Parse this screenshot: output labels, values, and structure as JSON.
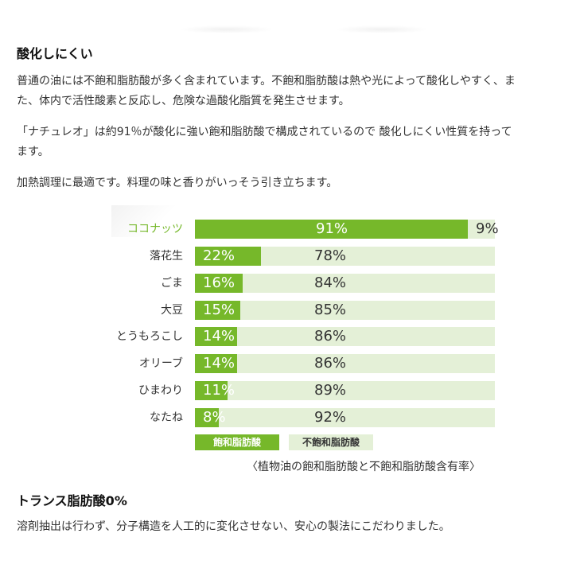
{
  "section1": {
    "heading": "酸化しにくい",
    "para1": [
      "普通の油には不飽和脂肪酸が多く含まれています。不飽和脂肪酸は熱や光によって酸化しやすく、ま",
      "た、体内で活性酸素と反応し、危険な過酸化脂質を発生させます。"
    ],
    "para2": [
      "「ナチュレオ」は約91％が酸化に強い飽和脂肪酸で構成されているので 酸化しにくい性質を持って",
      "ます。"
    ],
    "para3": "加熱調理に最適です。料理の味と香りがいっそう引き立ちます。"
  },
  "chart_data": {
    "type": "bar",
    "stacked": true,
    "orientation": "horizontal",
    "categories": [
      "ココナッツ",
      "落花生",
      "ごま",
      "大豆",
      "とうもろこし",
      "オリーブ",
      "ひまわり",
      "なたね"
    ],
    "series": [
      {
        "name": "飽和脂肪酸",
        "values": [
          91,
          22,
          16,
          15,
          14,
          14,
          11,
          8
        ],
        "labels": [
          "91%",
          "22%",
          "16%",
          "15%",
          "14%",
          "14%",
          "11%",
          "8%"
        ]
      },
      {
        "name": "不飽和脂肪酸",
        "values": [
          9,
          78,
          84,
          85,
          86,
          86,
          89,
          92
        ],
        "labels": [
          "9%",
          "78%",
          "84%",
          "85%",
          "86%",
          "86%",
          "89%",
          "92%"
        ]
      }
    ],
    "highlight_category": "ココナッツ",
    "colors": {
      "saturated": "#76b82a",
      "unsaturated": "#e4f0d7",
      "highlight_label": "#78b92e"
    },
    "legend": [
      "飽和脂肪酸",
      "不飽和脂肪酸"
    ],
    "legend_position": "bottom",
    "caption": "〈植物油の飽和脂肪酸と不飽和脂肪酸含有率〉",
    "xlim": [
      0,
      100
    ]
  },
  "section2": {
    "heading": "トランス脂肪酸0%",
    "para": "溶剤抽出は行わず、分子構造を人工的に変化させない、安心の製法にこだわりました。"
  }
}
